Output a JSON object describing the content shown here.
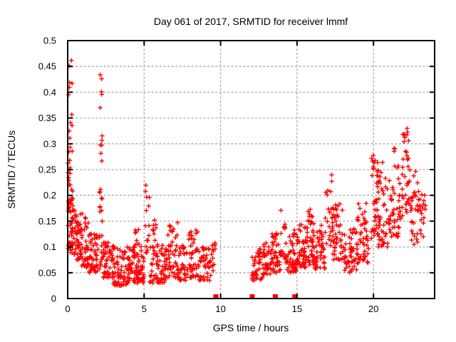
{
  "chart_data": {
    "type": "scatter",
    "title": "Day 061 of 2017, SRMTID for receiver lmmf",
    "xlabel": "GPS time / hours",
    "ylabel": "SRMTID / TECUs",
    "xlim": [
      0,
      24
    ],
    "ylim": [
      0,
      0.5
    ],
    "xticks": {
      "values": [
        0,
        5,
        10,
        15,
        20
      ],
      "labels": [
        "0",
        "5",
        "10",
        "15",
        "20"
      ]
    },
    "yticks": {
      "values": [
        0,
        0.05,
        0.1,
        0.15,
        0.2,
        0.25,
        0.3,
        0.35,
        0.4,
        0.45,
        0.5
      ],
      "labels": [
        "0",
        "0.05",
        "0.1",
        "0.15",
        "0.2",
        "0.25",
        "0.3",
        "0.35",
        "0.4",
        "0.45",
        "0.5"
      ]
    },
    "grid": true,
    "legend": "none",
    "colors": {
      "marker": "#ff0000",
      "grid": "#a8a8a8",
      "axis": "#000000",
      "background": "#ffffff",
      "text": "#000000"
    },
    "series": [
      {
        "name": "srmtid-scatter",
        "marker": "plus",
        "clusters": [
          {
            "x0": 0.02,
            "x1": 0.35,
            "n": 48,
            "y0": 0.085,
            "y1": 0.21,
            "bias": 1.2
          },
          {
            "x0": 0.02,
            "x1": 0.32,
            "n": 18,
            "y0": 0.21,
            "y1": 0.345,
            "bias": 1.15
          },
          {
            "x0": 0.05,
            "x1": 0.3,
            "n": 7,
            "y0": 0.35,
            "y1": 0.462,
            "bias": 1.0
          },
          {
            "x0": 0.35,
            "x1": 0.85,
            "n": 48,
            "y0": 0.075,
            "y1": 0.175,
            "bias": 1.5
          },
          {
            "x0": 0.85,
            "x1": 1.35,
            "n": 45,
            "y0": 0.06,
            "y1": 0.165,
            "bias": 1.5
          },
          {
            "x0": 1.35,
            "x1": 2.02,
            "n": 52,
            "y0": 0.05,
            "y1": 0.13,
            "bias": 1.5
          },
          {
            "x0": 2.05,
            "x1": 2.3,
            "n": 18,
            "y0": 0.055,
            "y1": 0.2,
            "bias": 1.2
          },
          {
            "x0": 2.08,
            "x1": 2.26,
            "n": 9,
            "y0": 0.2,
            "y1": 0.33,
            "bias": 1.1
          },
          {
            "x0": 2.1,
            "x1": 2.24,
            "n": 5,
            "y0": 0.36,
            "y1": 0.445,
            "bias": 1.0
          },
          {
            "x0": 2.3,
            "x1": 3.0,
            "n": 55,
            "y0": 0.04,
            "y1": 0.11,
            "bias": 1.5
          },
          {
            "x0": 3.0,
            "x1": 4.0,
            "n": 80,
            "y0": 0.025,
            "y1": 0.1,
            "bias": 1.5
          },
          {
            "x0": 4.0,
            "x1": 5.0,
            "n": 75,
            "y0": 0.03,
            "y1": 0.105,
            "bias": 1.5
          },
          {
            "x0": 4.4,
            "x1": 4.7,
            "n": 8,
            "y0": 0.1,
            "y1": 0.135,
            "bias": 1.1
          },
          {
            "x0": 5.05,
            "x1": 5.35,
            "n": 15,
            "y0": 0.085,
            "y1": 0.225,
            "bias": 1.2
          },
          {
            "x0": 5.35,
            "x1": 6.5,
            "n": 70,
            "y0": 0.03,
            "y1": 0.105,
            "bias": 1.5
          },
          {
            "x0": 5.4,
            "x1": 5.9,
            "n": 10,
            "y0": 0.1,
            "y1": 0.155,
            "bias": 1.1
          },
          {
            "x0": 6.5,
            "x1": 7.2,
            "n": 42,
            "y0": 0.04,
            "y1": 0.148,
            "bias": 1.5
          },
          {
            "x0": 7.2,
            "x1": 7.85,
            "n": 40,
            "y0": 0.035,
            "y1": 0.105,
            "bias": 1.4
          },
          {
            "x0": 7.85,
            "x1": 8.6,
            "n": 46,
            "y0": 0.04,
            "y1": 0.138,
            "bias": 1.5
          },
          {
            "x0": 8.6,
            "x1": 9.35,
            "n": 40,
            "y0": 0.035,
            "y1": 0.105,
            "bias": 1.4
          },
          {
            "x0": 9.4,
            "x1": 9.68,
            "n": 14,
            "y0": 0.05,
            "y1": 0.122,
            "bias": 1.2
          },
          {
            "x0": 12.05,
            "x1": 12.75,
            "n": 38,
            "y0": 0.035,
            "y1": 0.098,
            "bias": 1.4
          },
          {
            "x0": 12.75,
            "x1": 13.35,
            "n": 40,
            "y0": 0.045,
            "y1": 0.108,
            "bias": 1.4
          },
          {
            "x0": 13.35,
            "x1": 13.95,
            "n": 42,
            "y0": 0.05,
            "y1": 0.128,
            "bias": 1.4
          },
          {
            "x0": 13.95,
            "x1": 14.25,
            "n": 14,
            "y0": 0.07,
            "y1": 0.172,
            "bias": 1.1
          },
          {
            "x0": 14.25,
            "x1": 14.95,
            "n": 46,
            "y0": 0.05,
            "y1": 0.135,
            "bias": 1.4
          },
          {
            "x0": 14.95,
            "x1": 15.6,
            "n": 50,
            "y0": 0.06,
            "y1": 0.152,
            "bias": 1.4
          },
          {
            "x0": 15.6,
            "x1": 16.15,
            "n": 40,
            "y0": 0.065,
            "y1": 0.15,
            "bias": 1.4
          },
          {
            "x0": 15.7,
            "x1": 16.0,
            "n": 8,
            "y0": 0.15,
            "y1": 0.178,
            "bias": 1.0
          },
          {
            "x0": 16.15,
            "x1": 16.85,
            "n": 45,
            "y0": 0.055,
            "y1": 0.142,
            "bias": 1.4
          },
          {
            "x0": 16.85,
            "x1": 17.35,
            "n": 26,
            "y0": 0.09,
            "y1": 0.246,
            "bias": 1.2
          },
          {
            "x0": 17.35,
            "x1": 18.1,
            "n": 46,
            "y0": 0.075,
            "y1": 0.185,
            "bias": 1.4
          },
          {
            "x0": 18.1,
            "x1": 18.9,
            "n": 48,
            "y0": 0.05,
            "y1": 0.138,
            "bias": 1.35
          },
          {
            "x0": 18.9,
            "x1": 19.75,
            "n": 50,
            "y0": 0.065,
            "y1": 0.185,
            "bias": 1.4
          },
          {
            "x0": 19.8,
            "x1": 20.15,
            "n": 26,
            "y0": 0.115,
            "y1": 0.28,
            "bias": 1.25
          },
          {
            "x0": 20.15,
            "x1": 20.95,
            "n": 52,
            "y0": 0.1,
            "y1": 0.235,
            "bias": 1.3
          },
          {
            "x0": 20.2,
            "x1": 20.6,
            "n": 8,
            "y0": 0.235,
            "y1": 0.275,
            "bias": 1.0
          },
          {
            "x0": 20.95,
            "x1": 21.8,
            "n": 48,
            "y0": 0.12,
            "y1": 0.26,
            "bias": 1.35
          },
          {
            "x0": 21.25,
            "x1": 21.45,
            "n": 3,
            "y0": 0.285,
            "y1": 0.31,
            "bias": 1.0
          },
          {
            "x0": 21.85,
            "x1": 22.45,
            "n": 40,
            "y0": 0.155,
            "y1": 0.332,
            "bias": 1.2
          },
          {
            "x0": 22.45,
            "x1": 23.0,
            "n": 30,
            "y0": 0.105,
            "y1": 0.25,
            "bias": 1.25
          },
          {
            "x0": 23.0,
            "x1": 23.4,
            "n": 18,
            "y0": 0.115,
            "y1": 0.21,
            "bias": 1.2
          }
        ]
      },
      {
        "name": "axis-gap-squares",
        "marker": "filled-square",
        "points": [
          [
            9.69,
            0
          ],
          [
            12.07,
            0
          ],
          [
            13.58,
            0
          ],
          [
            14.85,
            0
          ]
        ]
      }
    ]
  }
}
